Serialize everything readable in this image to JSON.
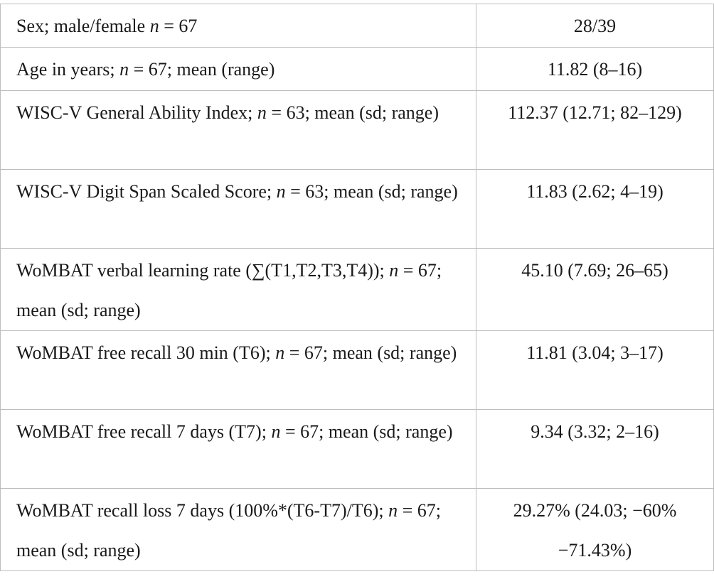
{
  "table": {
    "rows": [
      {
        "label_parts": [
          "Sex; male/female ",
          "n",
          " = 67"
        ],
        "value": "28/39"
      },
      {
        "label_parts": [
          "Age in years; ",
          "n",
          " = 67; mean (range)"
        ],
        "value": "11.82 (8–16)"
      },
      {
        "label_parts": [
          "WISC-V General Ability Index; ",
          "n",
          " = 63; mean (sd; range)"
        ],
        "value": "112.37 (12.71; 82–129)"
      },
      {
        "label_parts": [
          "WISC-V Digit Span Scaled Score; ",
          "n",
          " = 63; mean (sd; range)"
        ],
        "value": "11.83 (2.62; 4–19)"
      },
      {
        "label_parts": [
          "WoMBAT verbal learning rate (∑(T1,T2,T3,T4)); ",
          "n",
          " = 67; mean (sd; range)"
        ],
        "value": "45.10 (7.69; 26–65)"
      },
      {
        "label_parts": [
          "WoMBAT free recall 30 min (T6); ",
          "n",
          " = 67; mean (sd; range)"
        ],
        "value": "11.81 (3.04; 3–17)"
      },
      {
        "label_parts": [
          "WoMBAT free recall 7 days (T7); ",
          "n",
          " = 67; mean (sd; range)"
        ],
        "value": "9.34 (3.32; 2–16)"
      },
      {
        "label_parts": [
          "WoMBAT recall loss 7 days (100%*(T6-T7)/T6); ",
          "n",
          " = 67; mean (sd; range)"
        ],
        "value": "29.27% (24.03; −60% −71.43%)"
      }
    ]
  }
}
